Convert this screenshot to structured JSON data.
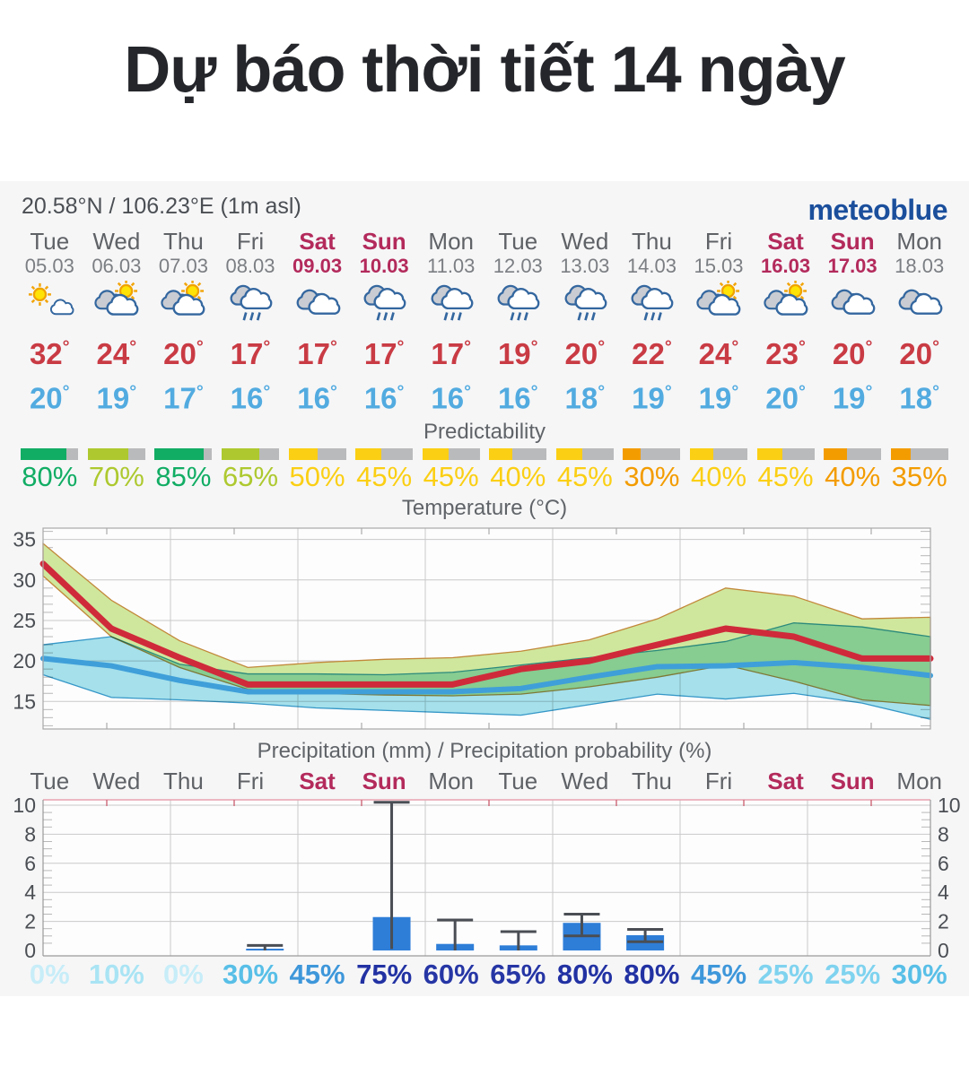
{
  "page": {
    "title": "Dự báo thời tiết 14 ngày"
  },
  "widget": {
    "location": "20.58°N / 106.23°E (1m asl)",
    "logo": "meteoblue",
    "sections": {
      "predictability_label": "Predictability"
    },
    "colors": {
      "weekend": "#b32a5b",
      "weekday": "#5f6266",
      "t_max": "#c93b44",
      "t_min": "#52abe0",
      "logo_blue": "#1b4f9c",
      "predictability_green": "#12ad64",
      "predictability_lime": "#adc92f",
      "predictability_yellow": "#fbcf14",
      "predictability_orange": "#f39c00",
      "bar_track_gray": "#b9babb"
    },
    "days": [
      {
        "name": "Tue",
        "date": "05.03",
        "weekend": false,
        "icon": "sun-and-cloud",
        "t_max": 32,
        "t_min": 20,
        "predictability": {
          "value": 80,
          "color": "#12ad64"
        },
        "precip_prob": {
          "value": 0,
          "color": "#c7edf8"
        }
      },
      {
        "name": "Wed",
        "date": "06.03",
        "weekend": false,
        "icon": "cloud-with-sun",
        "t_max": 24,
        "t_min": 19,
        "predictability": {
          "value": 70,
          "color": "#adc92f"
        },
        "precip_prob": {
          "value": 10,
          "color": "#a9e4f4"
        }
      },
      {
        "name": "Thu",
        "date": "07.03",
        "weekend": false,
        "icon": "cloud-with-sun",
        "t_max": 20,
        "t_min": 17,
        "predictability": {
          "value": 85,
          "color": "#12ad64"
        },
        "precip_prob": {
          "value": 0,
          "color": "#c7edf8"
        }
      },
      {
        "name": "Fri",
        "date": "08.03",
        "weekend": false,
        "icon": "rain",
        "t_max": 17,
        "t_min": 16,
        "predictability": {
          "value": 65,
          "color": "#adc92f"
        },
        "precip_prob": {
          "value": 30,
          "color": "#58bfe7"
        }
      },
      {
        "name": "Sat",
        "date": "09.03",
        "weekend": true,
        "icon": "cloudy",
        "t_max": 17,
        "t_min": 16,
        "predictability": {
          "value": 50,
          "color": "#fbcf14"
        },
        "precip_prob": {
          "value": 45,
          "color": "#3e97da"
        }
      },
      {
        "name": "Sun",
        "date": "10.03",
        "weekend": true,
        "icon": "rain",
        "t_max": 17,
        "t_min": 16,
        "predictability": {
          "value": 45,
          "color": "#fbcf14"
        },
        "precip_prob": {
          "value": 75,
          "color": "#2232a3"
        }
      },
      {
        "name": "Mon",
        "date": "11.03",
        "weekend": false,
        "icon": "rain",
        "t_max": 17,
        "t_min": 16,
        "predictability": {
          "value": 45,
          "color": "#fbcf14"
        },
        "precip_prob": {
          "value": 60,
          "color": "#2636a5"
        }
      },
      {
        "name": "Tue",
        "date": "12.03",
        "weekend": false,
        "icon": "rain",
        "t_max": 19,
        "t_min": 16,
        "predictability": {
          "value": 40,
          "color": "#fbcf14"
        },
        "precip_prob": {
          "value": 65,
          "color": "#2636a5"
        }
      },
      {
        "name": "Wed",
        "date": "13.03",
        "weekend": false,
        "icon": "rain",
        "t_max": 20,
        "t_min": 18,
        "predictability": {
          "value": 45,
          "color": "#fbcf14"
        },
        "precip_prob": {
          "value": 80,
          "color": "#2232a3"
        }
      },
      {
        "name": "Thu",
        "date": "14.03",
        "weekend": false,
        "icon": "rain",
        "t_max": 22,
        "t_min": 19,
        "predictability": {
          "value": 30,
          "color": "#f39c00"
        },
        "precip_prob": {
          "value": 80,
          "color": "#2232a3"
        }
      },
      {
        "name": "Fri",
        "date": "15.03",
        "weekend": false,
        "icon": "cloud-with-sun",
        "t_max": 24,
        "t_min": 19,
        "predictability": {
          "value": 40,
          "color": "#fbcf14"
        },
        "precip_prob": {
          "value": 45,
          "color": "#3e97da"
        }
      },
      {
        "name": "Sat",
        "date": "16.03",
        "weekend": true,
        "icon": "cloud-with-sun",
        "t_max": 23,
        "t_min": 20,
        "predictability": {
          "value": 45,
          "color": "#fbcf14"
        },
        "precip_prob": {
          "value": 25,
          "color": "#7fd3ef"
        }
      },
      {
        "name": "Sun",
        "date": "17.03",
        "weekend": true,
        "icon": "cloudy",
        "t_max": 20,
        "t_min": 19,
        "predictability": {
          "value": 40,
          "color": "#f39c00"
        },
        "precip_prob": {
          "value": 25,
          "color": "#7fd3ef"
        }
      },
      {
        "name": "Mon",
        "date": "18.03",
        "weekend": false,
        "icon": "cloudy",
        "t_max": 20,
        "t_min": 18,
        "predictability": {
          "value": 35,
          "color": "#f39c00"
        },
        "precip_prob": {
          "value": 30,
          "color": "#58bfe7"
        }
      }
    ]
  },
  "chart_data": [
    {
      "type": "line",
      "title": "Temperature (°C)",
      "categories": [
        "Tue",
        "Wed",
        "Thu",
        "Fri",
        "Sat",
        "Sun",
        "Mon",
        "Tue",
        "Wed",
        "Thu",
        "Fri",
        "Sat",
        "Sun",
        "Mon"
      ],
      "ylim": [
        11.6,
        36.4
      ],
      "yticks": [
        15,
        20,
        25,
        30,
        35
      ],
      "grid": true,
      "series": [
        {
          "name": "max-temperature",
          "color": "#cf2a3a",
          "values": [
            32,
            24,
            20.4,
            17.1,
            17.1,
            17.1,
            17.1,
            19,
            20,
            22,
            24,
            23,
            20.3,
            20.3
          ]
        },
        {
          "name": "min-temperature",
          "color": "#3f9fd9",
          "values": [
            20.3,
            19.4,
            17.6,
            16.2,
            16.2,
            16.2,
            16.2,
            16.6,
            18,
            19.3,
            19.4,
            19.8,
            19.2,
            18.2
          ]
        }
      ],
      "bands": [
        {
          "name": "max-temperature-range",
          "fill": "#cfe79d",
          "edge": "#c2883a",
          "upper": [
            34.5,
            27.5,
            22.5,
            19.2,
            19.8,
            20.2,
            20.4,
            21.2,
            22.6,
            25.2,
            29,
            28,
            25.2,
            25.4
          ],
          "lower": [
            30.5,
            23,
            19.2,
            16.5,
            16,
            15.8,
            15.7,
            15.9,
            16.8,
            18,
            19.5,
            17.5,
            15.2,
            14.5
          ]
        },
        {
          "name": "min-temperature-range",
          "fill": "#a6e2ec",
          "edge": "#3598c8",
          "upper": [
            22,
            23,
            19.6,
            18.4,
            18.4,
            18.3,
            18.6,
            19.5,
            20.4,
            21.3,
            22.4,
            24.7,
            24.2,
            23
          ],
          "lower": [
            18.3,
            15.5,
            15.2,
            14.8,
            14.2,
            13.9,
            13.6,
            13.3,
            14.6,
            15.9,
            15.3,
            16,
            14.8,
            12.8
          ]
        }
      ]
    },
    {
      "type": "bar",
      "title": "Precipitation (mm) / Precipitation probability (%)",
      "categories": [
        "Tue",
        "Wed",
        "Thu",
        "Fri",
        "Sat",
        "Sun",
        "Mon",
        "Tue",
        "Wed",
        "Thu",
        "Fri",
        "Sat",
        "Sun",
        "Mon"
      ],
      "ylim": [
        0,
        10.4
      ],
      "yticks": [
        0,
        2,
        4,
        6,
        8,
        10
      ],
      "bar_color": "#2e7ed8",
      "whisker_color": "#4a4e54",
      "values": [
        0,
        0,
        0,
        0.12,
        0,
        2.3,
        0.45,
        0.35,
        1.9,
        1.05,
        0,
        0,
        0,
        0
      ],
      "whisker_max": [
        null,
        null,
        null,
        0.35,
        null,
        10.2,
        2.1,
        1.3,
        2.5,
        1.45,
        null,
        null,
        null,
        null
      ],
      "whisker_min": [
        null,
        null,
        null,
        0,
        null,
        0.1,
        0,
        0,
        1.0,
        0.6,
        null,
        null,
        null,
        null
      ],
      "probabilities": [
        0,
        10,
        0,
        30,
        45,
        75,
        60,
        65,
        80,
        80,
        45,
        25,
        25,
        30
      ]
    }
  ]
}
